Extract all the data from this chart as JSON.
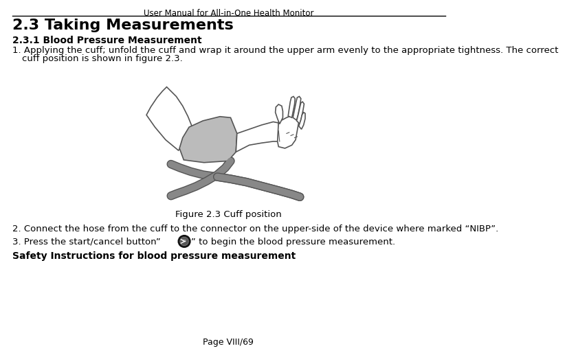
{
  "header_title": "User Manual for All-in-One Health Monitor",
  "section_title": "2.3 Taking Measurements",
  "subsection_title": "2.3.1 Blood Pressure Measurement",
  "paragraph1_line1": "1. Applying the cuff; unfold the cuff and wrap it around the upper arm evenly to the appropriate tightness. The correct",
  "paragraph1_line2": "   cuff position is shown in figure 2.3.",
  "figure_caption": "Figure 2.3 Cuff position",
  "step2": "2. Connect the hose from the cuff to the connector on the upper-side of the device where marked “NIBP”.",
  "step3_pre": "3. Press the start/cancel button”",
  "step3_post": "” to begin the blood pressure measurement.",
  "safety_title": "Safety Instructions for blood pressure measurement",
  "page_footer": "Page VIII/69",
  "bg_color": "#ffffff",
  "text_color": "#000000",
  "header_line_color": "#000000",
  "outline_color": "#555555",
  "cuff_color": "#bbbbbb",
  "tube_color": "#888888"
}
